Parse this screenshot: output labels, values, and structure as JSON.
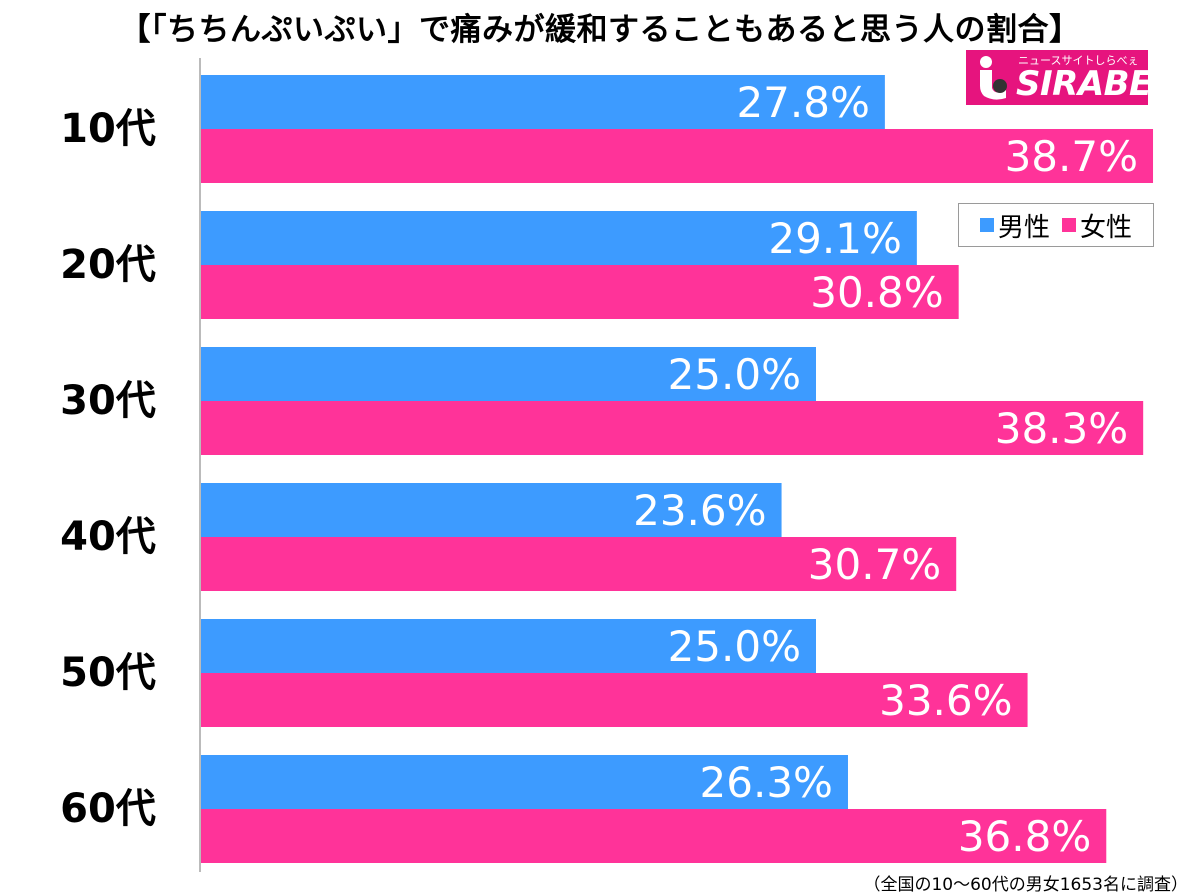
{
  "title": "【「ちちんぷいぷい」で痛みが緩和することもあると思う人の割合】",
  "footnote": "（全国の10～60代の男女1653名に調査）",
  "logo": {
    "main": "SIRABEE",
    "sub": "ニュースサイトしらべぇ"
  },
  "colors": {
    "male": "#3d9bff",
    "female": "#ff3399",
    "axis": "#bbbbbb"
  },
  "chart_data": {
    "type": "bar",
    "orientation": "horizontal",
    "title": "【「ちちんぷいぷい」で痛みが緩和することもあると思う人の割合】",
    "categories": [
      "10代",
      "20代",
      "30代",
      "40代",
      "50代",
      "60代"
    ],
    "series": [
      {
        "name": "男性",
        "values": [
          27.8,
          29.1,
          25.0,
          23.6,
          25.0,
          26.3
        ]
      },
      {
        "name": "女性",
        "values": [
          38.7,
          30.8,
          38.3,
          30.7,
          33.6,
          36.8
        ]
      }
    ],
    "value_labels": [
      [
        "27.8%",
        "29.1%",
        "25.0%",
        "23.6%",
        "25.0%",
        "26.3%"
      ],
      [
        "38.7%",
        "30.8%",
        "38.3%",
        "30.7%",
        "33.6%",
        "36.8%"
      ]
    ],
    "xlim": [
      0,
      40
    ],
    "legend": "top-right",
    "grid": false
  }
}
